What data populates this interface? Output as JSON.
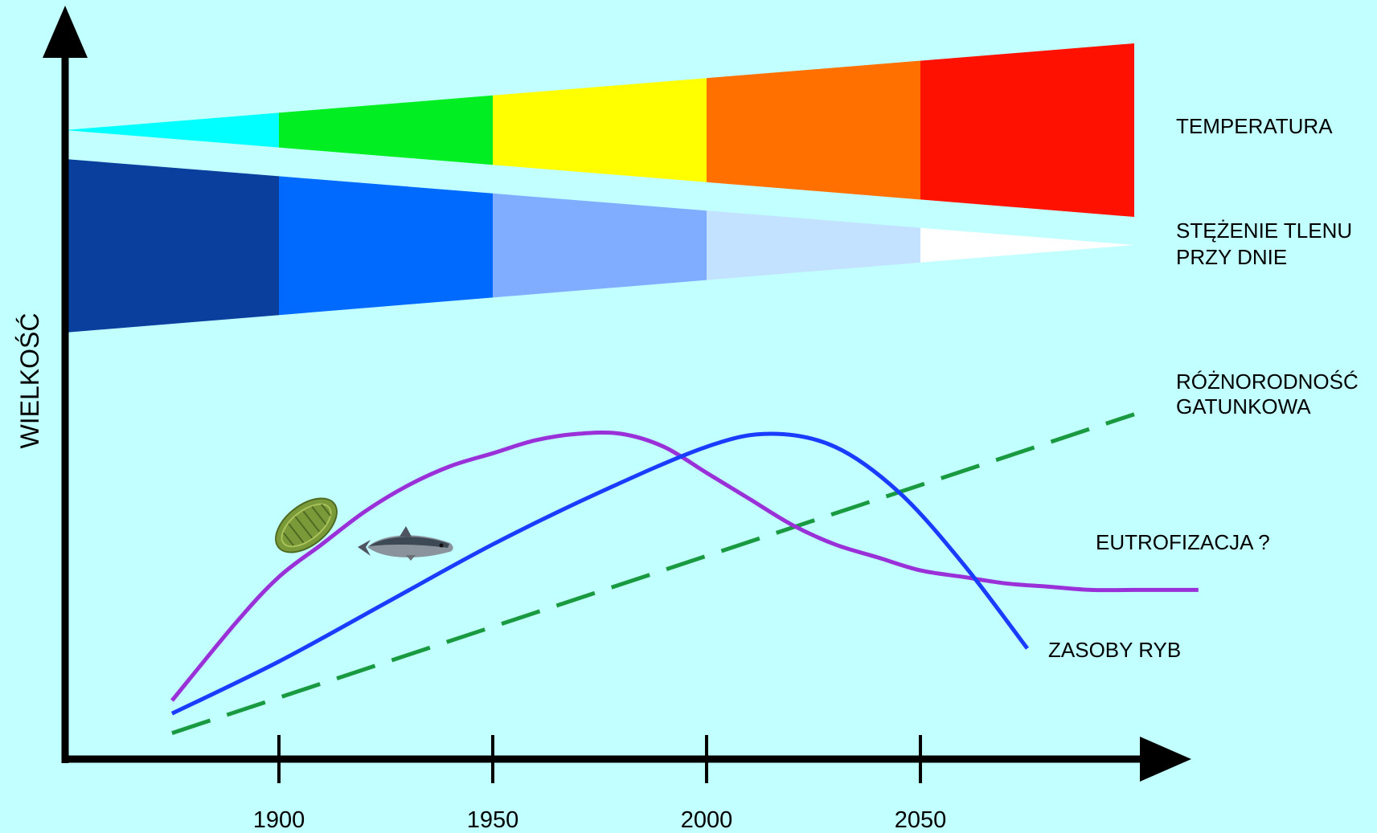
{
  "chart_data": {
    "type": "line",
    "xlabel": "",
    "ylabel": "WIELKOŚĆ",
    "x_ticks": [
      "1900",
      "1950",
      "2000",
      "2050"
    ],
    "xlim": [
      1850,
      2100
    ],
    "grid": false,
    "bands": [
      {
        "name": "TEMPERATURA",
        "label_lines": [
          "TEMPERATURA"
        ],
        "trend": "increasing",
        "segments": [
          {
            "from": 1850,
            "to": 1900,
            "color": "#00ffff"
          },
          {
            "from": 1900,
            "to": 1950,
            "color": "#00ee22"
          },
          {
            "from": 1950,
            "to": 2000,
            "color": "#ffff00"
          },
          {
            "from": 2000,
            "to": 2050,
            "color": "#ff7000"
          },
          {
            "from": 2050,
            "to": 2100,
            "color": "#ff1100"
          }
        ]
      },
      {
        "name": "STĘŻENIE TLENU PRZY DNIE",
        "label_lines": [
          "STĘŻENIE TLENU",
          "PRZY DNIE"
        ],
        "trend": "decreasing",
        "segments": [
          {
            "from": 1850,
            "to": 1900,
            "color": "#0a3f9e"
          },
          {
            "from": 1900,
            "to": 1950,
            "color": "#006aff"
          },
          {
            "from": 1950,
            "to": 2000,
            "color": "#80adff"
          },
          {
            "from": 2000,
            "to": 2050,
            "color": "#c3e2ff"
          },
          {
            "from": 2050,
            "to": 2100,
            "color": "#ffffff"
          }
        ]
      }
    ],
    "series": [
      {
        "name": "RÓŻNORODNOŚĆ GATUNKOWA",
        "label_lines": [
          "RÓŻNORODNOŚĆ",
          "GATUNKOWA"
        ],
        "color": "#1a9a40",
        "style": "dashed",
        "x": [
          1875,
          2100
        ],
        "y": [
          0.04,
          0.53
        ]
      },
      {
        "name": "EUTROFIZACJA ?",
        "label_lines": [
          "EUTROFIZACJA ?"
        ],
        "color": "#9a30d8",
        "style": "solid",
        "x": [
          1875,
          1890,
          1900,
          1910,
          1920,
          1930,
          1940,
          1950,
          1960,
          1970,
          1980,
          1990,
          2000,
          2010,
          2020,
          2030,
          2040,
          2050,
          2060,
          2070,
          2080,
          2090,
          2100,
          2115
        ],
        "y": [
          0.09,
          0.21,
          0.28,
          0.33,
          0.38,
          0.42,
          0.45,
          0.47,
          0.49,
          0.5,
          0.5,
          0.48,
          0.44,
          0.4,
          0.36,
          0.33,
          0.31,
          0.29,
          0.28,
          0.27,
          0.265,
          0.26,
          0.26,
          0.26
        ]
      },
      {
        "name": "ZASOBY RYB",
        "label_lines": [
          "ZASOBY RYB"
        ],
        "color": "#1a3cff",
        "style": "solid",
        "x": [
          1875,
          1900,
          1925,
          1950,
          1975,
          2000,
          2015,
          2030,
          2045,
          2060,
          2075
        ],
        "y": [
          0.07,
          0.15,
          0.24,
          0.33,
          0.41,
          0.48,
          0.5,
          0.48,
          0.41,
          0.3,
          0.17
        ]
      }
    ]
  }
}
